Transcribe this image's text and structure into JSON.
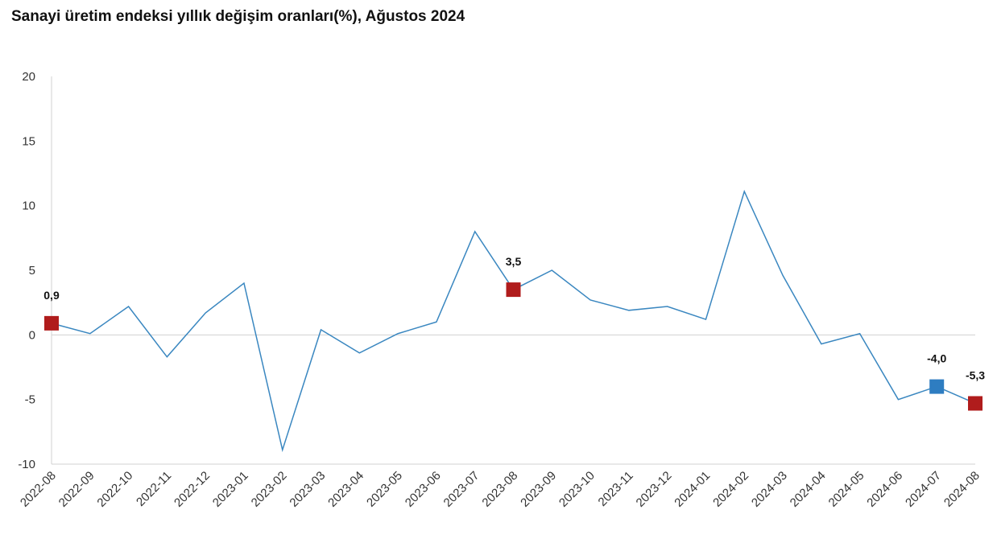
{
  "chart_data": {
    "type": "line",
    "title": "Sanayi üretim endeksi yıllık değişim oranları(%), Ağustos 2024",
    "categories": [
      "2022-08",
      "2022-09",
      "2022-10",
      "2022-11",
      "2022-12",
      "2023-01",
      "2023-02",
      "2023-03",
      "2023-04",
      "2023-05",
      "2023-06",
      "2023-07",
      "2023-08",
      "2023-09",
      "2023-10",
      "2023-11",
      "2023-12",
      "2024-01",
      "2024-02",
      "2024-03",
      "2024-04",
      "2024-05",
      "2024-06",
      "2024-07",
      "2024-08"
    ],
    "series": [
      {
        "color": "#3a87c0",
        "values": [
          0.9,
          0.1,
          2.2,
          -1.7,
          1.7,
          4.0,
          -8.9,
          0.4,
          -1.4,
          0.1,
          1.0,
          8.0,
          3.5,
          5.0,
          2.7,
          1.9,
          2.2,
          1.2,
          11.1,
          4.6,
          -0.7,
          0.1,
          -5.0,
          -4.0,
          -5.3
        ],
        "value_labels": [
          "0,9",
          null,
          null,
          null,
          null,
          null,
          null,
          null,
          null,
          null,
          null,
          null,
          "3,5",
          null,
          null,
          null,
          null,
          null,
          null,
          null,
          null,
          null,
          null,
          "-4,0",
          "-5,3"
        ],
        "marker_colors": [
          "#b01c1c",
          null,
          null,
          null,
          null,
          null,
          null,
          null,
          null,
          null,
          null,
          null,
          "#b01c1c",
          null,
          null,
          null,
          null,
          null,
          null,
          null,
          null,
          null,
          null,
          "#2e7dc1",
          "#b01c1c"
        ]
      }
    ],
    "ylim": [
      -10,
      20
    ],
    "yticks": [
      -10,
      -5,
      0,
      5,
      10,
      15,
      20
    ],
    "zero_line": true
  }
}
